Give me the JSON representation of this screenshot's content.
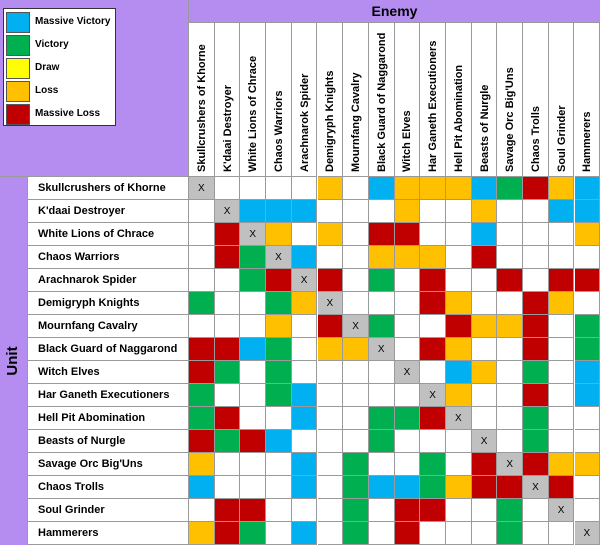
{
  "legend": [
    {
      "label": "Massive Victory",
      "color": "#00b0f0"
    },
    {
      "label": "Victory",
      "color": "#00b050"
    },
    {
      "label": "Draw",
      "color": "#ffff00"
    },
    {
      "label": "Loss",
      "color": "#ffc000"
    },
    {
      "label": "Massive Loss",
      "color": "#c00000"
    }
  ],
  "enemy_title": "Enemy",
  "unit_title": "Unit",
  "x_marker": "X",
  "colors": {
    "purple": "#b58cf0",
    "grid_line": "#9a9a9a"
  },
  "units": [
    "Skullcrushers of Khorne",
    "K'daai Destroyer",
    "White Lions of Chrace",
    "Chaos Warriors",
    "Arachnarok Spider",
    "Demigryph Knights",
    "Mournfang Cavalry",
    "Black Guard of Naggarond",
    "Witch Elves",
    "Har Ganeth Executioners",
    "Hell Pit Abomination",
    "Beasts of Nurgle",
    "Savage Orc Big'Uns",
    "Chaos Trolls",
    "Soul Grinder",
    "Hammerers"
  ],
  "matrix": [
    [
      "X",
      "",
      "",
      "",
      "",
      "L",
      "",
      "MV",
      "L",
      "L",
      "L",
      "MV",
      "V",
      "ML",
      "L",
      "MV"
    ],
    [
      "",
      "X",
      "MV",
      "MV",
      "MV",
      "",
      "",
      "",
      "L",
      "",
      "",
      "L",
      "",
      "",
      "MV",
      "MV"
    ],
    [
      "",
      "ML",
      "X",
      "L",
      "",
      "L",
      "",
      "ML",
      "ML",
      "",
      "",
      "MV",
      "",
      "",
      "",
      "L"
    ],
    [
      "",
      "ML",
      "V",
      "X",
      "MV",
      "",
      "",
      "L",
      "L",
      "L",
      "",
      "ML",
      "",
      "",
      "",
      ""
    ],
    [
      "",
      "",
      "V",
      "ML",
      "X",
      "ML",
      "",
      "V",
      "",
      "ML",
      "",
      "",
      "ML",
      "",
      "ML",
      "ML"
    ],
    [
      "V",
      "",
      "",
      "V",
      "L",
      "X",
      "",
      "",
      "",
      "ML",
      "L",
      "",
      "",
      "ML",
      "L",
      ""
    ],
    [
      "",
      "",
      "",
      "L",
      "",
      "ML",
      "X",
      "V",
      "",
      "",
      "ML",
      "L",
      "L",
      "ML",
      "",
      "V"
    ],
    [
      "ML",
      "ML",
      "MV",
      "V",
      "",
      "L",
      "L",
      "X",
      "",
      "ML",
      "L",
      "",
      "",
      "ML",
      "",
      "V"
    ],
    [
      "ML",
      "V",
      "",
      "V",
      "",
      "",
      "",
      "",
      "X",
      "",
      "MV",
      "L",
      "",
      "V",
      "",
      "MV"
    ],
    [
      "V",
      "",
      "",
      "V",
      "MV",
      "",
      "",
      "",
      "",
      "X",
      "L",
      "",
      "",
      "ML",
      "",
      "MV"
    ],
    [
      "V",
      "ML",
      "",
      "",
      "MV",
      "",
      "",
      "V",
      "V",
      "ML",
      "X",
      "",
      "",
      "V",
      "",
      ""
    ],
    [
      "ML",
      "V",
      "ML",
      "MV",
      "",
      "",
      "",
      "V",
      "",
      "",
      "",
      "X",
      "",
      "V",
      "",
      ""
    ],
    [
      "L",
      "",
      "",
      "",
      "MV",
      "",
      "V",
      "",
      "",
      "V",
      "",
      "ML",
      "X",
      "ML",
      "L",
      "L"
    ],
    [
      "MV",
      "",
      "",
      "",
      "MV",
      "",
      "V",
      "MV",
      "MV",
      "V",
      "L",
      "ML",
      "ML",
      "X",
      "ML",
      ""
    ],
    [
      "",
      "ML",
      "ML",
      "",
      "",
      "",
      "V",
      "",
      "ML",
      "ML",
      "",
      "",
      "V",
      "",
      "X",
      ""
    ],
    [
      "L",
      "ML",
      "V",
      "",
      "MV",
      "",
      "V",
      "",
      "ML",
      "",
      "",
      "",
      "V",
      "",
      "",
      "X"
    ]
  ],
  "code_colors": {
    "MV": "#00b0f0",
    "V": "#00b050",
    "D": "#ffff00",
    "L": "#ffc000",
    "ML": "#c00000"
  }
}
